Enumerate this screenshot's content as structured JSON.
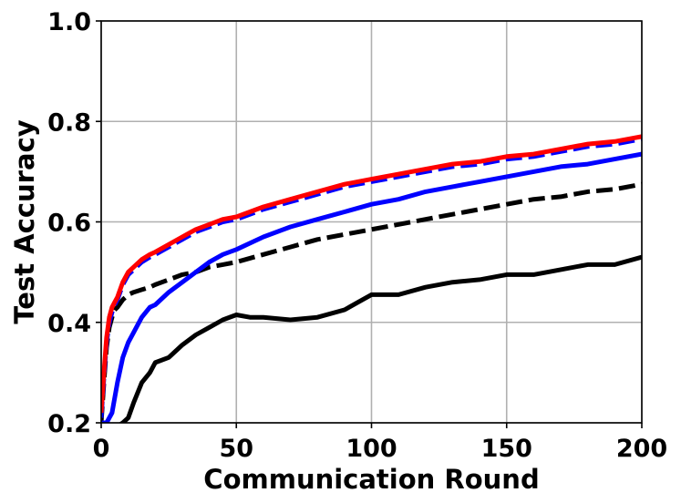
{
  "chart_data": {
    "type": "line",
    "title": "",
    "xlabel": "Communication Round",
    "ylabel": "Test Accuracy",
    "xlim": [
      0,
      200
    ],
    "ylim": [
      0.2,
      1.0
    ],
    "xticks": [
      0,
      50,
      100,
      150,
      200
    ],
    "yticks": [
      0.2,
      0.4,
      0.6,
      0.8,
      1.0
    ],
    "xtick_labels": [
      "0",
      "50",
      "100",
      "150",
      "200"
    ],
    "ytick_labels": [
      "0.2",
      "0.4",
      "0.6",
      "0.8",
      "1.0"
    ],
    "grid": true,
    "legend": "none",
    "series": [
      {
        "color": "#ff0000",
        "dash": "solid",
        "x": [
          0,
          1,
          2,
          3,
          4,
          5,
          6,
          8,
          10,
          12,
          15,
          18,
          20,
          25,
          30,
          35,
          40,
          45,
          50,
          60,
          70,
          80,
          90,
          100,
          110,
          120,
          130,
          140,
          150,
          160,
          170,
          180,
          190,
          200
        ],
        "y": [
          0.22,
          0.3,
          0.37,
          0.41,
          0.43,
          0.44,
          0.45,
          0.48,
          0.5,
          0.51,
          0.525,
          0.535,
          0.54,
          0.555,
          0.57,
          0.585,
          0.595,
          0.605,
          0.61,
          0.63,
          0.645,
          0.66,
          0.675,
          0.685,
          0.695,
          0.705,
          0.715,
          0.72,
          0.73,
          0.735,
          0.745,
          0.755,
          0.76,
          0.77
        ]
      },
      {
        "color": "#0000ff",
        "dash": "dashed",
        "x": [
          0,
          1,
          2,
          3,
          4,
          5,
          6,
          8,
          10,
          12,
          15,
          18,
          20,
          25,
          30,
          35,
          40,
          45,
          50,
          60,
          70,
          80,
          90,
          100,
          110,
          120,
          130,
          140,
          150,
          160,
          170,
          180,
          190,
          200
        ],
        "y": [
          0.21,
          0.29,
          0.36,
          0.4,
          0.42,
          0.435,
          0.445,
          0.475,
          0.495,
          0.505,
          0.52,
          0.53,
          0.535,
          0.55,
          0.565,
          0.58,
          0.59,
          0.6,
          0.605,
          0.625,
          0.64,
          0.655,
          0.67,
          0.68,
          0.69,
          0.7,
          0.71,
          0.715,
          0.725,
          0.73,
          0.74,
          0.75,
          0.755,
          0.765
        ]
      },
      {
        "color": "#0000ff",
        "dash": "solid",
        "x": [
          0,
          2,
          4,
          6,
          8,
          10,
          12,
          15,
          18,
          20,
          25,
          30,
          35,
          40,
          45,
          50,
          60,
          70,
          80,
          90,
          100,
          110,
          120,
          130,
          140,
          150,
          160,
          170,
          180,
          190,
          200
        ],
        "y": [
          0.2,
          0.2,
          0.22,
          0.28,
          0.33,
          0.36,
          0.38,
          0.41,
          0.43,
          0.435,
          0.46,
          0.48,
          0.5,
          0.52,
          0.535,
          0.545,
          0.57,
          0.59,
          0.605,
          0.62,
          0.635,
          0.645,
          0.66,
          0.67,
          0.68,
          0.69,
          0.7,
          0.71,
          0.715,
          0.725,
          0.735
        ]
      },
      {
        "color": "#000000",
        "dash": "dashed",
        "x": [
          0,
          1,
          2,
          3,
          4,
          5,
          6,
          8,
          10,
          12,
          15,
          18,
          20,
          25,
          30,
          35,
          40,
          45,
          50,
          60,
          70,
          80,
          90,
          100,
          110,
          120,
          130,
          140,
          150,
          160,
          170,
          180,
          190,
          200
        ],
        "y": [
          0.2,
          0.28,
          0.35,
          0.39,
          0.41,
          0.425,
          0.43,
          0.445,
          0.455,
          0.46,
          0.465,
          0.47,
          0.475,
          0.485,
          0.495,
          0.5,
          0.51,
          0.515,
          0.52,
          0.535,
          0.55,
          0.565,
          0.575,
          0.585,
          0.595,
          0.605,
          0.615,
          0.625,
          0.635,
          0.645,
          0.65,
          0.66,
          0.665,
          0.675
        ]
      },
      {
        "color": "#000000",
        "dash": "solid",
        "x": [
          0,
          5,
          8,
          10,
          12,
          15,
          18,
          20,
          25,
          30,
          35,
          40,
          45,
          50,
          55,
          60,
          70,
          80,
          90,
          95,
          100,
          110,
          120,
          130,
          140,
          150,
          160,
          170,
          180,
          190,
          200
        ],
        "y": [
          0.19,
          0.19,
          0.2,
          0.21,
          0.24,
          0.28,
          0.3,
          0.32,
          0.33,
          0.355,
          0.375,
          0.39,
          0.405,
          0.415,
          0.41,
          0.41,
          0.405,
          0.41,
          0.425,
          0.44,
          0.455,
          0.455,
          0.47,
          0.48,
          0.485,
          0.495,
          0.495,
          0.505,
          0.515,
          0.515,
          0.53
        ]
      }
    ]
  }
}
